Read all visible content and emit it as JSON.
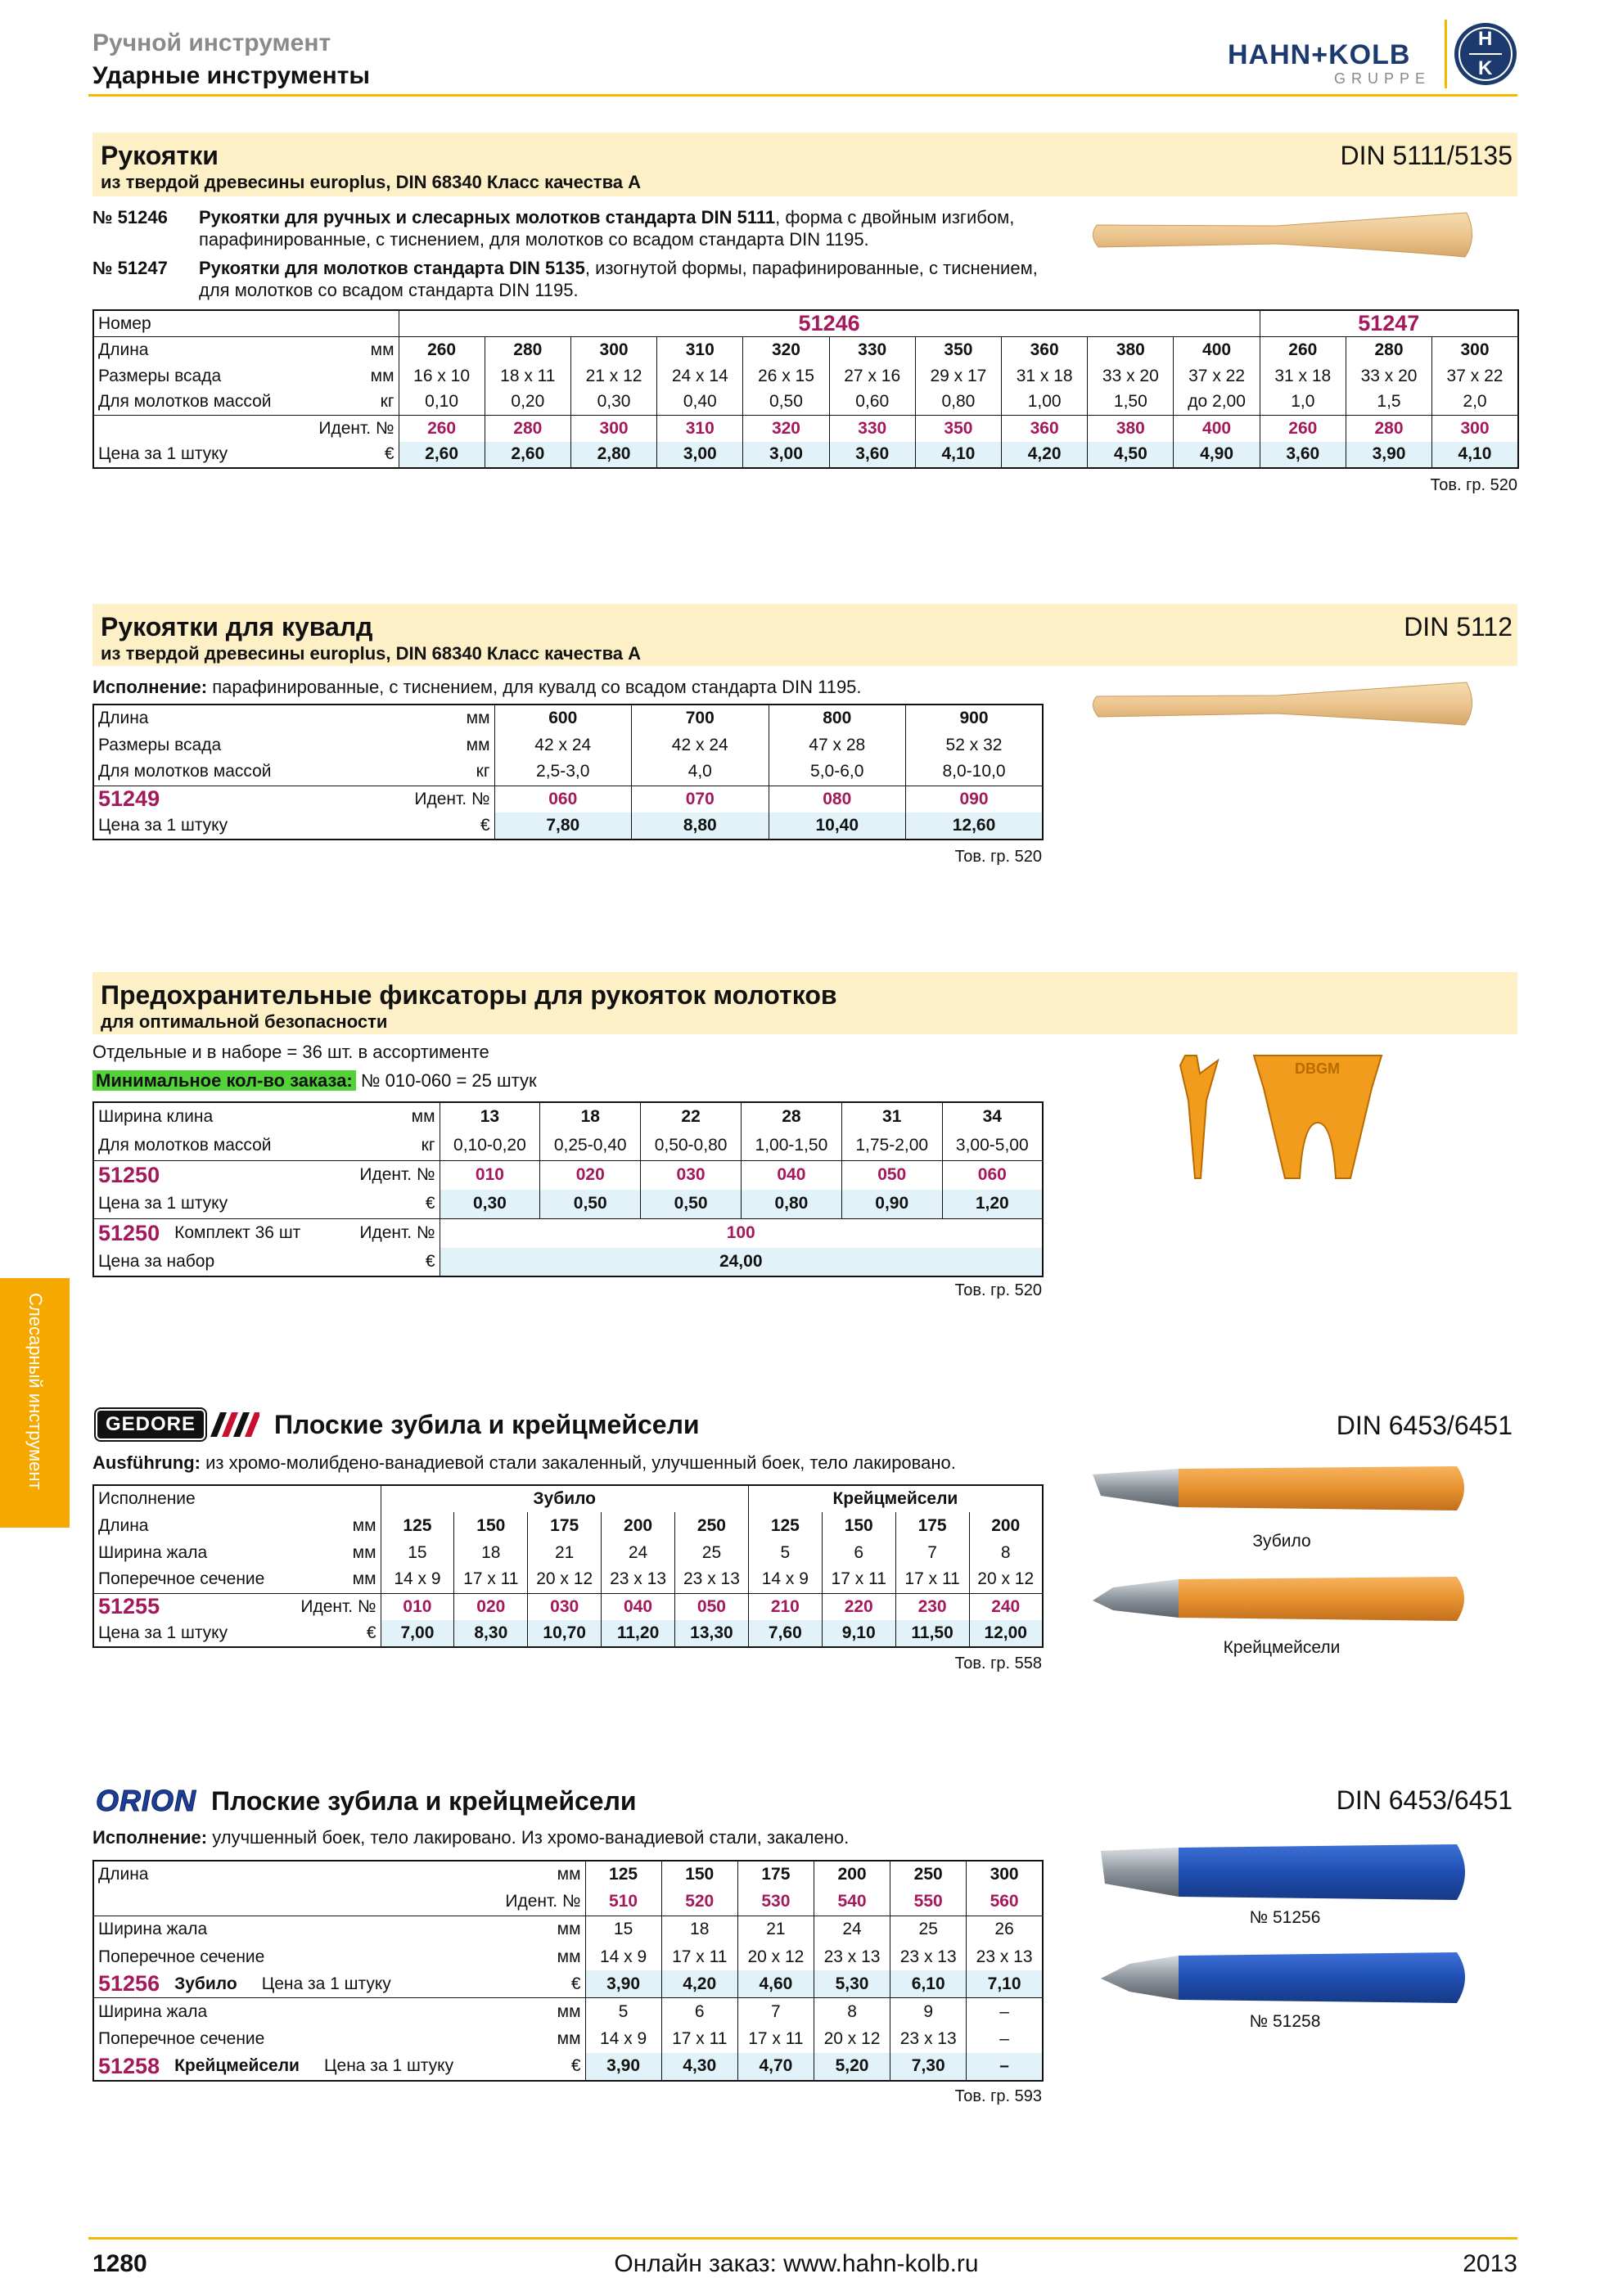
{
  "header": {
    "category": "Ручной инструмент",
    "subcategory": "Ударные инструменты",
    "logo": "HAHN+KOLB",
    "logo_sub": "GRUPPE",
    "logo_mark": [
      "H",
      "K"
    ]
  },
  "side_tab": "Слесарный инструмент",
  "sections": [
    {
      "title": "Рукоятки",
      "subtitle": "из твердой древесины europlus, DIN 68340 Класс качества A",
      "standard": "DIN 5111/5135",
      "intro": [
        {
          "number": "№ 51246",
          "bold": "Рукоятки для ручных и слесарных молотков стандарта DIN 5111",
          "text": ", форма с двойным изгибом, парафинированные, с тиснением, для молотков со всадом стандарта DIN 1195."
        },
        {
          "number": "№ 51247",
          "bold": "Рукоятки для молотков стандарта DIN 5135",
          "text": ", изогнутой формы, парафинированные, с тиснением, для молотков со всадом стандарта DIN 1195."
        }
      ],
      "table": {
        "rows": [
          {
            "label": "Номер",
            "values": [
              "51246",
              "51247"
            ]
          },
          {
            "label": "Длина",
            "unit": "мм",
            "values": [
              "260",
              "280",
              "300",
              "310",
              "320",
              "330",
              "350",
              "360",
              "380",
              "400",
              "260",
              "280",
              "300"
            ]
          },
          {
            "label": "Размеры всада",
            "unit": "мм",
            "values": [
              "16 x 10",
              "18 x 11",
              "21 x 12",
              "24 x 14",
              "26 x 15",
              "27 x 16",
              "29 x 17",
              "31 x 18",
              "33 x 20",
              "37 x 22",
              "31 x 18",
              "33 x 20",
              "37 x 22"
            ]
          },
          {
            "label": "Для молотков массой",
            "unit": "кг",
            "values": [
              "0,10",
              "0,20",
              "0,30",
              "0,40",
              "0,50",
              "0,60",
              "0,80",
              "1,00",
              "1,50",
              "до 2,00",
              "1,0",
              "1,5",
              "2,0"
            ]
          },
          {
            "unit": "Идент. №",
            "values": [
              "260",
              "280",
              "300",
              "310",
              "320",
              "330",
              "350",
              "360",
              "380",
              "400",
              "260",
              "280",
              "300"
            ]
          },
          {
            "label": "Цена за 1 штуку",
            "unit": "€",
            "values": [
              "2,60",
              "2,60",
              "2,80",
              "3,00",
              "3,00",
              "3,60",
              "4,10",
              "4,20",
              "4,50",
              "4,90",
              "3,60",
              "3,90",
              "4,10"
            ]
          }
        ]
      },
      "note": "Тов. гр. 520"
    },
    {
      "title": "Рукоятки для кувалд",
      "subtitle": "из твердой древесины europlus, DIN 68340 Класс качества A",
      "standard": "DIN 5112",
      "intro": [
        {
          "bold": "Исполнение:",
          "text": "парафинированные, с тиснением, для кувалд со всадом стандарта DIN 1195."
        }
      ],
      "table": {
        "rows": [
          {
            "label": "Длина",
            "unit": "мм",
            "values": [
              "600",
              "700",
              "800",
              "900"
            ]
          },
          {
            "label": "Размеры всада",
            "unit": "мм",
            "values": [
              "42 x 24",
              "42 x 24",
              "47 x 28",
              "52 x 32"
            ]
          },
          {
            "label": "Для молотков массой",
            "unit": "кг",
            "values": [
              "2,5-3,0",
              "4,0",
              "5,0-6,0",
              "8,0-10,0"
            ]
          },
          {
            "code": "51249",
            "unit": "Идент. №",
            "values": [
              "060",
              "070",
              "080",
              "090"
            ]
          },
          {
            "label": "Цена за 1 штуку",
            "unit": "€",
            "values": [
              "7,80",
              "8,80",
              "10,40",
              "12,60"
            ]
          }
        ]
      },
      "note": "Тов. гр. 520"
    },
    {
      "title": "Предохранительные фиксаторы для рукояток молотков",
      "subtitle": "для оптимальной безопасности",
      "intro": [
        {
          "text": "Отдельные и в наборе = 36 шт. в ассортименте"
        },
        {
          "highlight": "Минимальное кол-во заказа:",
          "text": "№ 010-060 = 25 штук"
        }
      ],
      "table": {
        "rows": [
          {
            "label": "Ширина клина",
            "unit": "мм",
            "values": [
              "13",
              "18",
              "22",
              "28",
              "31",
              "34"
            ]
          },
          {
            "label": "Для молотков массой",
            "unit": "кг",
            "values": [
              "0,10-0,20",
              "0,25-0,40",
              "0,50-0,80",
              "1,00-1,50",
              "1,75-2,00",
              "3,00-5,00"
            ]
          },
          {
            "code": "51250",
            "unit": "Идент. №",
            "values": [
              "010",
              "020",
              "030",
              "040",
              "050",
              "060"
            ]
          },
          {
            "label": "Цена за 1 штуку",
            "unit": "€",
            "values": [
              "0,30",
              "0,50",
              "0,50",
              "0,80",
              "0,90",
              "1,20"
            ]
          },
          {
            "code": "51250",
            "label": "Комплект 36 шт",
            "unit": "Идент. №",
            "values": [
              "100"
            ]
          },
          {
            "label": "Цена за набор",
            "unit": "€",
            "values": [
              "24,00"
            ]
          }
        ]
      },
      "image_label": "DBGM",
      "note": "Тов. гр. 520"
    },
    {
      "brand": "GEDORE",
      "title": "Плоские зубила и крейцмейсели",
      "standard": "DIN 6453/6451",
      "intro": [
        {
          "bold": "Ausführung:",
          "text": "из хромо-молибдено-ванадиевой стали закаленный, улучшенный боек, тело лакировано."
        }
      ],
      "table": {
        "rows": [
          {
            "label": "Исполнение",
            "values": [
              "Зубило",
              "Крейцмейсели"
            ]
          },
          {
            "label": "Длина",
            "unit": "мм",
            "values": [
              "125",
              "150",
              "175",
              "200",
              "250",
              "125",
              "150",
              "175",
              "200"
            ]
          },
          {
            "label": "Ширина жала",
            "unit": "мм",
            "values": [
              "15",
              "18",
              "21",
              "24",
              "25",
              "5",
              "6",
              "7",
              "8"
            ]
          },
          {
            "label": "Поперечное сечение",
            "unit": "мм",
            "values": [
              "14 x 9",
              "17 x 11",
              "20 x 12",
              "23 x 13",
              "23 x 13",
              "14 x 9",
              "17 x 11",
              "17 x 11",
              "20 x 12"
            ]
          },
          {
            "code": "51255",
            "unit": "Идент. №",
            "values": [
              "010",
              "020",
              "030",
              "040",
              "050",
              "210",
              "220",
              "230",
              "240"
            ]
          },
          {
            "label": "Цена за 1 штуку",
            "unit": "€",
            "values": [
              "7,00",
              "8,30",
              "10,70",
              "11,20",
              "13,30",
              "7,60",
              "9,10",
              "11,50",
              "12,00"
            ]
          }
        ]
      },
      "images": [
        "Зубило",
        "Крейцмейсели"
      ],
      "note": "Тов. гр. 558"
    },
    {
      "brand": "ORION",
      "title": "Плоские зубила и крейцмейсели",
      "standard": "DIN 6453/6451",
      "intro": [
        {
          "bold": "Исполнение:",
          "text": "улучшенный боек, тело лакировано. Из хромо-ванадиевой стали, закалено."
        }
      ],
      "table": {
        "rows": [
          {
            "label": "Длина",
            "unit": "мм",
            "values": [
              "125",
              "150",
              "175",
              "200",
              "250",
              "300"
            ]
          },
          {
            "unit": "Идент. №",
            "values": [
              "510",
              "520",
              "530",
              "540",
              "550",
              "560"
            ]
          },
          {
            "label": "Ширина жала",
            "unit": "мм",
            "values": [
              "15",
              "18",
              "21",
              "24",
              "25",
              "26"
            ]
          },
          {
            "label": "Поперечное сечение",
            "unit": "мм",
            "values": [
              "14 x 9",
              "17 x 11",
              "20 x 12",
              "23 x 13",
              "23 x 13",
              "23 x 13"
            ]
          },
          {
            "code": "51256",
            "label": "Зубило",
            "sublabel": "Цена за 1 штуку",
            "unit": "€",
            "values": [
              "3,90",
              "4,20",
              "4,60",
              "5,30",
              "6,10",
              "7,10"
            ]
          },
          {
            "label": "Ширина жала",
            "unit": "мм",
            "values": [
              "5",
              "6",
              "7",
              "8",
              "9",
              "–"
            ]
          },
          {
            "label": "Поперечное сечение",
            "unit": "мм",
            "values": [
              "14 x 9",
              "17 x 11",
              "17 x 11",
              "20 x 12",
              "23 x 13",
              "–"
            ]
          },
          {
            "code": "51258",
            "label": "Крейцмейсели",
            "sublabel": "Цена за 1 штуку",
            "unit": "€",
            "values": [
              "3,90",
              "4,30",
              "4,70",
              "5,20",
              "7,30",
              "–"
            ]
          }
        ]
      },
      "images": [
        "№ 51256",
        "№ 51258"
      ],
      "note": "Тов. гр. 593"
    }
  ],
  "footer": {
    "page": "1280",
    "order": "Онлайн заказ: www.hahn-kolb.ru",
    "year": "2013"
  }
}
